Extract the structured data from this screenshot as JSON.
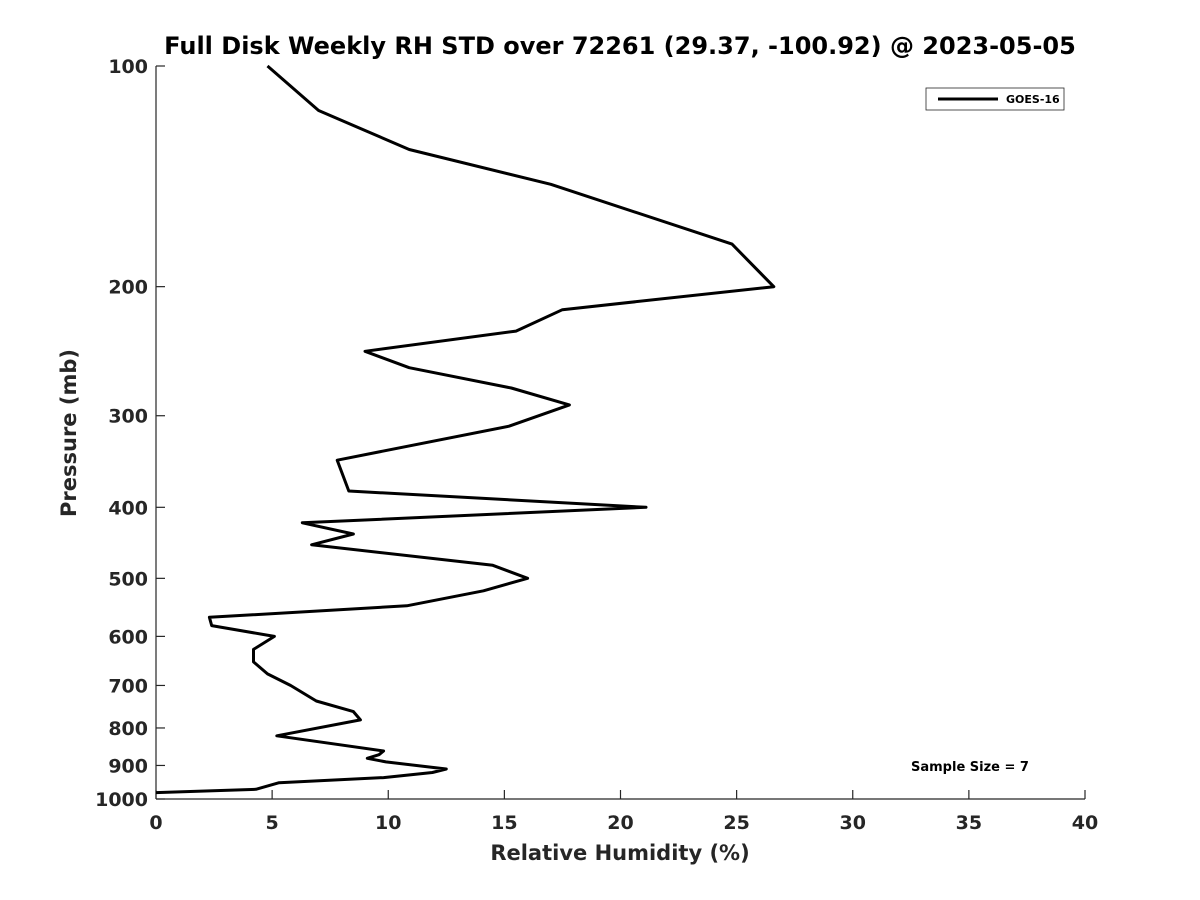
{
  "chart_data": {
    "type": "line",
    "title": "Full Disk Weekly RH STD over 72261 (29.37, -100.92) @ 2023-05-05",
    "xlabel": "Relative Humidity (%)",
    "ylabel": "Pressure (mb)",
    "xlim": [
      0,
      40
    ],
    "ylim": [
      100,
      1000
    ],
    "y_scale": "log",
    "y_reversed": true,
    "x_ticks": [
      0,
      5,
      10,
      15,
      20,
      25,
      30,
      35,
      40
    ],
    "y_ticks": [
      100,
      200,
      300,
      400,
      500,
      600,
      700,
      800,
      900,
      1000
    ],
    "grid": false,
    "legend_position": "top-right",
    "annotation": "Sample Size = 7",
    "series": [
      {
        "name": "GOES-16",
        "color": "#000000",
        "x": [
          4.8,
          7.0,
          10.9,
          17.0,
          24.8,
          26.6,
          17.5,
          15.5,
          9.0,
          10.9,
          15.3,
          17.8,
          15.2,
          7.8,
          8.3,
          21.1,
          6.3,
          8.5,
          6.7,
          14.5,
          16.0,
          14.1,
          10.8,
          2.3,
          2.4,
          5.1,
          4.2,
          4.2,
          4.8,
          5.8,
          6.9,
          8.5,
          8.8,
          5.2,
          9.8,
          9.6,
          9.1,
          9.9,
          12.5,
          11.9,
          9.8,
          5.3,
          4.3,
          0.0
        ],
        "y": [
          100,
          115,
          130,
          145,
          175,
          200,
          215,
          230,
          245,
          258,
          275,
          290,
          310,
          345,
          380,
          400,
          420,
          435,
          450,
          480,
          500,
          520,
          545,
          565,
          580,
          600,
          625,
          650,
          675,
          700,
          735,
          760,
          780,
          820,
          860,
          870,
          880,
          890,
          910,
          920,
          935,
          950,
          970,
          980
        ]
      }
    ]
  }
}
